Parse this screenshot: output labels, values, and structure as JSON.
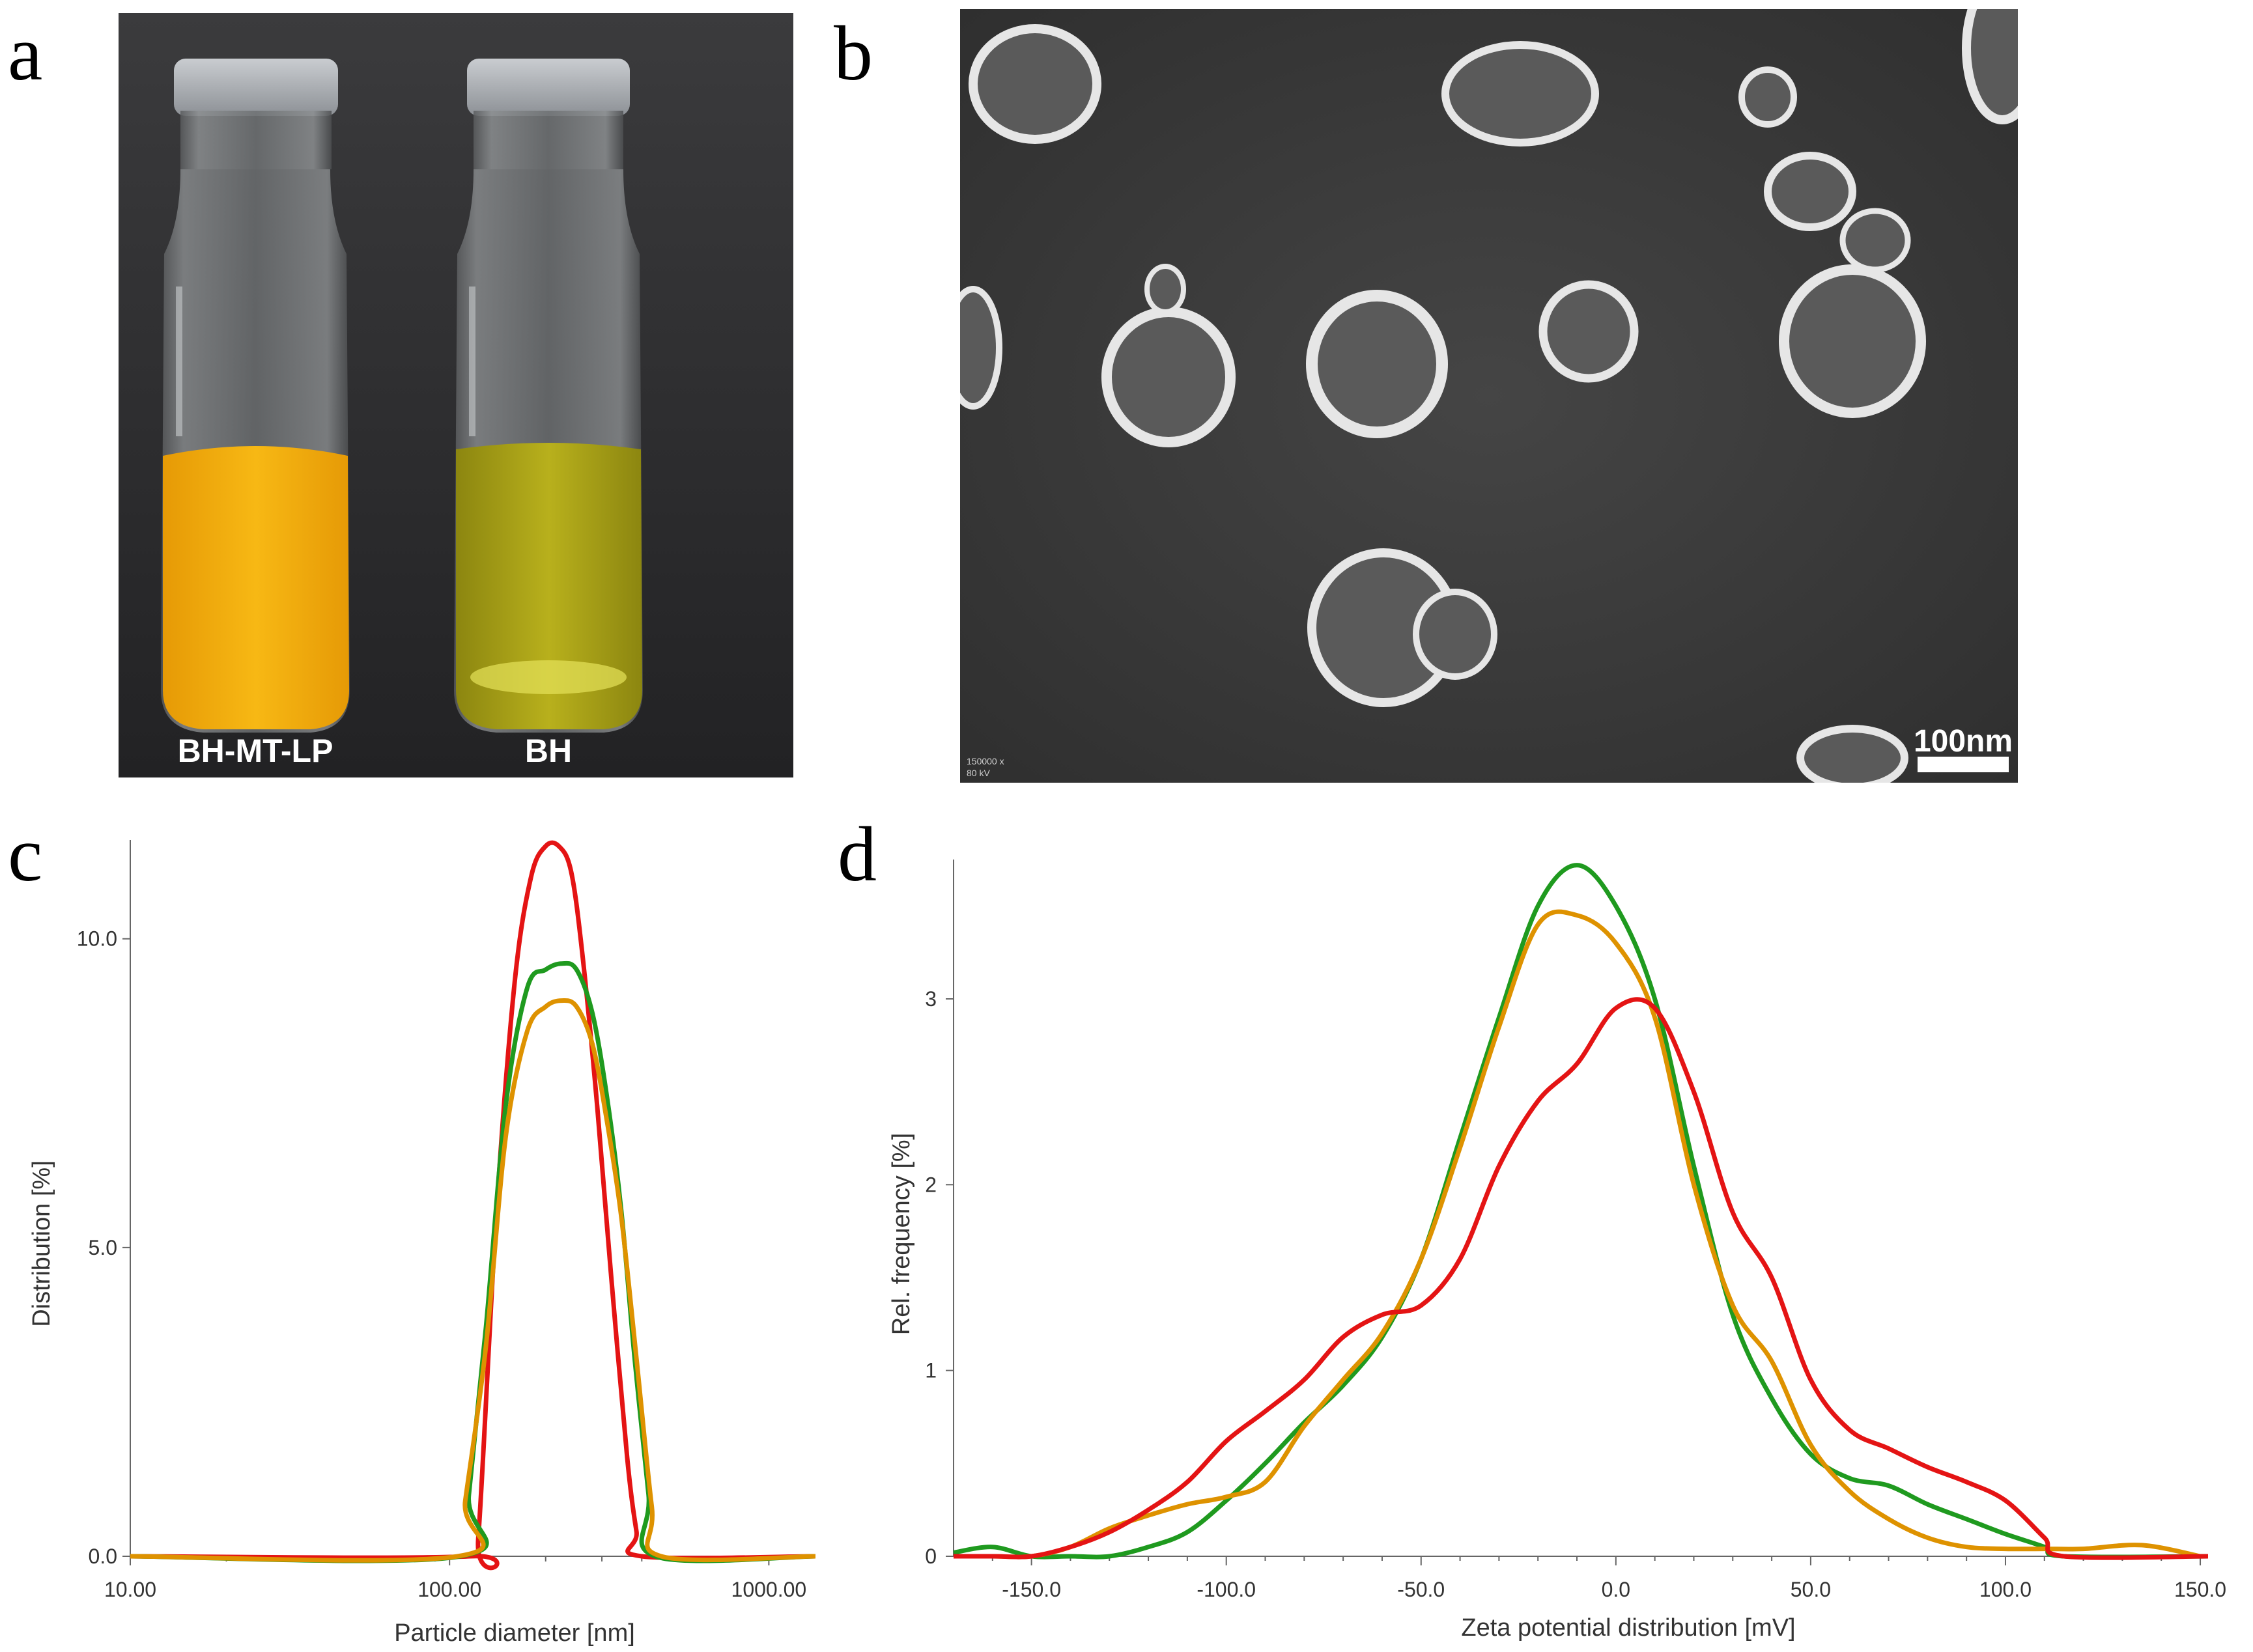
{
  "panels": {
    "a": "a",
    "b": "b",
    "c": "c",
    "d": "d"
  },
  "photo": {
    "vial_left_label": "BH-MT-LP",
    "vial_right_label": "BH",
    "vial_left_color": "#f2b00f",
    "vial_right_color": "#b3ab1a"
  },
  "sem": {
    "scale_bar_label": "100nm",
    "info_line1": "150000 x",
    "info_line2": "80 kV"
  },
  "colors": {
    "green": "#1f9a1f",
    "orange": "#de9200",
    "red": "#e41414"
  },
  "chart_data": [
    {
      "type": "line",
      "panel": "c",
      "xlabel": "Particle diameter [nm]",
      "ylabel": "Distribution [%]",
      "x_scale": "log",
      "xlim": [
        10,
        1400
      ],
      "ylim": [
        0,
        11.6
      ],
      "xticks": [
        10,
        100,
        1000
      ],
      "xtick_labels": [
        "10.00",
        "100.00",
        "1000.00"
      ],
      "yticks": [
        0,
        5,
        10
      ],
      "ytick_labels": [
        "0.0",
        "5.0",
        "10.0"
      ],
      "series": [
        {
          "color": "#e41414",
          "x": [
            10,
            116,
            123,
            140,
            160,
            180,
            200,
            220,
            240,
            260,
            290,
            320,
            360,
            385,
            400,
            1400
          ],
          "y": [
            0,
            0,
            0.3,
            5.5,
            9.3,
            11.0,
            11.5,
            11.5,
            11.1,
            9.8,
            7.3,
            4.6,
            1.6,
            0.4,
            0,
            0
          ]
        },
        {
          "color": "#1f9a1f",
          "x": [
            10,
            108,
            115,
            130,
            150,
            175,
            200,
            225,
            250,
            280,
            310,
            345,
            380,
            420,
            440,
            1400
          ],
          "y": [
            0,
            0,
            1.0,
            3.7,
            7.3,
            9.2,
            9.5,
            9.6,
            9.5,
            8.8,
            7.5,
            5.6,
            3.2,
            1.0,
            0,
            0
          ]
        },
        {
          "color": "#de9200",
          "x": [
            10,
            106,
            112,
            130,
            150,
            175,
            200,
            225,
            250,
            280,
            310,
            345,
            385,
            430,
            460,
            1400
          ],
          "y": [
            0,
            0,
            0.9,
            3.4,
            6.8,
            8.5,
            8.9,
            9.0,
            8.9,
            8.3,
            7.1,
            5.5,
            3.2,
            0.8,
            0,
            0
          ]
        }
      ]
    },
    {
      "type": "line",
      "panel": "d",
      "xlabel": "Zeta potential distribution [mV]",
      "ylabel": "Rel. frequency [%]",
      "xlim": [
        -170,
        152
      ],
      "ylim": [
        0,
        3.75
      ],
      "xticks": [
        -150,
        -100,
        -50,
        0,
        50,
        100,
        150
      ],
      "xtick_labels": [
        "-150.0",
        "-100.0",
        "-50.0",
        "0.0",
        "50.0",
        "100.0",
        "150.0"
      ],
      "yticks": [
        0,
        1,
        2,
        3
      ],
      "ytick_labels": [
        "0",
        "1",
        "2",
        "3"
      ],
      "series": [
        {
          "color": "#1f9a1f",
          "x": [
            -170,
            -160,
            -150,
            -140,
            -130,
            -120,
            -110,
            -100,
            -90,
            -80,
            -70,
            -60,
            -50,
            -40,
            -30,
            -20,
            -10,
            0,
            10,
            20,
            30,
            40,
            50,
            60,
            70,
            80,
            90,
            100,
            110,
            115,
            152
          ],
          "y": [
            0.02,
            0.05,
            0.0,
            0.0,
            0.0,
            0.05,
            0.13,
            0.3,
            0.5,
            0.72,
            0.92,
            1.18,
            1.6,
            2.25,
            2.9,
            3.5,
            3.72,
            3.5,
            3.0,
            2.1,
            1.3,
            0.85,
            0.55,
            0.42,
            0.38,
            0.28,
            0.2,
            0.12,
            0.05,
            0.0,
            0.0
          ]
        },
        {
          "color": "#de9200",
          "x": [
            -170,
            -160,
            -150,
            -140,
            -130,
            -120,
            -110,
            -100,
            -90,
            -80,
            -70,
            -60,
            -50,
            -40,
            -30,
            -20,
            -10,
            0,
            10,
            20,
            30,
            40,
            50,
            60,
            70,
            80,
            90,
            100,
            110,
            120,
            135,
            150
          ],
          "y": [
            0.0,
            0.0,
            0.0,
            0.05,
            0.15,
            0.22,
            0.28,
            0.32,
            0.4,
            0.7,
            0.95,
            1.2,
            1.6,
            2.2,
            2.85,
            3.4,
            3.45,
            3.3,
            2.9,
            2.0,
            1.35,
            1.05,
            0.6,
            0.35,
            0.2,
            0.1,
            0.05,
            0.04,
            0.04,
            0.04,
            0.06,
            0.0
          ]
        },
        {
          "color": "#e41414",
          "x": [
            -170,
            -160,
            -150,
            -140,
            -130,
            -120,
            -110,
            -100,
            -90,
            -80,
            -70,
            -60,
            -50,
            -40,
            -30,
            -20,
            -10,
            0,
            10,
            20,
            30,
            40,
            50,
            60,
            70,
            80,
            90,
            100,
            110,
            115,
            152
          ],
          "y": [
            0.0,
            0.0,
            0.0,
            0.05,
            0.13,
            0.25,
            0.4,
            0.62,
            0.78,
            0.95,
            1.18,
            1.3,
            1.35,
            1.6,
            2.1,
            2.45,
            2.65,
            2.95,
            2.95,
            2.5,
            1.85,
            1.5,
            0.95,
            0.68,
            0.58,
            0.48,
            0.4,
            0.3,
            0.1,
            0.0,
            0.0
          ]
        }
      ]
    }
  ]
}
